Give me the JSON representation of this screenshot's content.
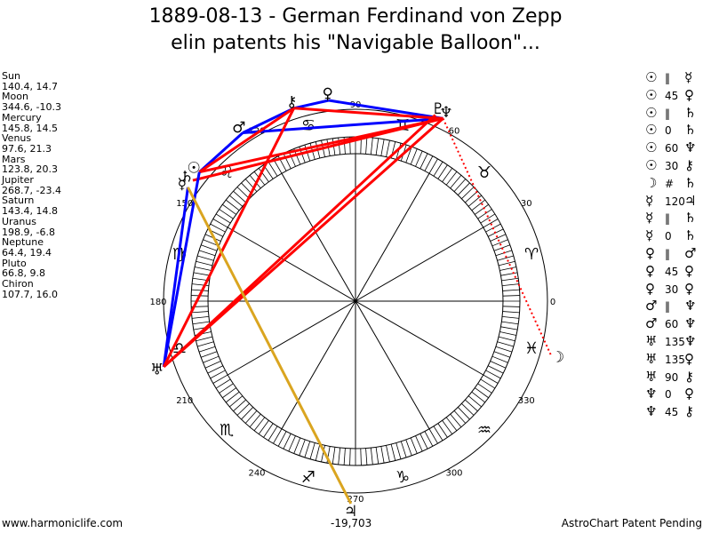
{
  "title": {
    "line1": "1889-08-13 - German Ferdinand von Zepp",
    "line2": "elin patents his \"Navigable Balloon\"..."
  },
  "planets": [
    {
      "name": "Sun",
      "glyph": "☉",
      "values": "140.4, 14.7",
      "lon": 140.4
    },
    {
      "name": "Moon",
      "glyph": "☽",
      "values": "344.6, -10.3",
      "lon": 344.6
    },
    {
      "name": "Mercury",
      "glyph": "☿",
      "values": "145.8, 14.5",
      "lon": 145.8
    },
    {
      "name": "Venus",
      "glyph": "♀",
      "values": "97.6, 21.3",
      "lon": 97.6
    },
    {
      "name": "Mars",
      "glyph": "♂",
      "values": "123.8, 20.3",
      "lon": 123.8
    },
    {
      "name": "Jupiter",
      "glyph": "♃",
      "values": "268.7, -23.4",
      "lon": 268.7
    },
    {
      "name": "Saturn",
      "glyph": "♄",
      "values": "143.4, 14.8",
      "lon": 143.4
    },
    {
      "name": "Uranus",
      "glyph": "♅",
      "values": "198.9, -6.8",
      "lon": 198.9
    },
    {
      "name": "Neptune",
      "glyph": "♆",
      "values": "64.4, 19.4",
      "lon": 64.4
    },
    {
      "name": "Pluto",
      "glyph": "♇",
      "values": "66.8, 9.8",
      "lon": 66.8
    },
    {
      "name": "Chiron",
      "glyph": "⚷",
      "values": "107.7, 16.0",
      "lon": 107.7
    }
  ],
  "aspects": [
    {
      "p1": "Sun",
      "g1": "☉",
      "sym": "‖",
      "g2": "☿",
      "color": "#0000ff"
    },
    {
      "p1": "Sun",
      "g1": "☉",
      "sym": "45",
      "g2": "♀",
      "color": "#ff0000"
    },
    {
      "p1": "Sun",
      "g1": "☉",
      "sym": "‖",
      "g2": "♄",
      "color": "#0000ff"
    },
    {
      "p1": "Sun",
      "g1": "☉",
      "sym": "0",
      "g2": "♄",
      "color": "#0000ff"
    },
    {
      "p1": "Sun",
      "g1": "☉",
      "sym": "60",
      "g2": "♆",
      "color": "#0000ff"
    },
    {
      "p1": "Sun",
      "g1": "☉",
      "sym": "30",
      "g2": "⚷",
      "color": "#0000ff"
    },
    {
      "p1": "Moon",
      "g1": "☽",
      "sym": "#",
      "g2": "♄",
      "color": "#ff0000"
    },
    {
      "p1": "Mercury",
      "g1": "☿",
      "sym": "120",
      "g2": "♃",
      "color": "#0000ff"
    },
    {
      "p1": "Mercury",
      "g1": "☿",
      "sym": "‖",
      "g2": "♄",
      "color": "#0000ff"
    },
    {
      "p1": "Mercury",
      "g1": "☿",
      "sym": "0",
      "g2": "♄",
      "color": "#0000ff"
    },
    {
      "p1": "Venus",
      "g1": "♀",
      "sym": "‖",
      "g2": "♂",
      "color": "#0000ff"
    },
    {
      "p1": "Venus",
      "g1": "♀",
      "sym": "45",
      "g2": "♀",
      "color": "#ff0000"
    },
    {
      "p1": "Venus",
      "g1": "♀",
      "sym": "30",
      "g2": "♀",
      "color": "#0000ff"
    },
    {
      "p1": "Mars",
      "g1": "♂",
      "sym": "‖",
      "g2": "♆",
      "color": "#0000ff"
    },
    {
      "p1": "Mars",
      "g1": "♂",
      "sym": "60",
      "g2": "♆",
      "color": "#0000ff"
    },
    {
      "p1": "Uranus",
      "g1": "♅",
      "sym": "135",
      "g2": "♆",
      "color": "#ff0000"
    },
    {
      "p1": "Uranus",
      "g1": "♅",
      "sym": "135",
      "g2": "♀",
      "color": "#ff0000"
    },
    {
      "p1": "Uranus",
      "g1": "♅",
      "sym": "90",
      "g2": "⚷",
      "color": "#ff0000"
    },
    {
      "p1": "Neptune",
      "g1": "♆",
      "sym": "0",
      "g2": "♀",
      "color": "#0000ff"
    },
    {
      "p1": "Neptune",
      "g1": "♆",
      "sym": "45",
      "g2": "⚷",
      "color": "#ff0000"
    }
  ],
  "chart_lines": [
    {
      "from": "Venus",
      "to": "Neptune",
      "color": "#0000ff"
    },
    {
      "from": "Venus",
      "to": "Chiron",
      "color": "#0000ff"
    },
    {
      "from": "Mars",
      "to": "Neptune",
      "color": "#0000ff"
    },
    {
      "from": "Mars",
      "to": "Chiron",
      "color": "#0000ff"
    },
    {
      "from": "Mars",
      "to": "Sun",
      "color": "#0000ff"
    },
    {
      "from": "Chiron",
      "to": "Neptune",
      "color": "#ff0000"
    },
    {
      "from": "Chiron",
      "to": "Sun",
      "color": "#ff0000"
    },
    {
      "from": "Sun",
      "to": "Neptune",
      "color": "#ff0000"
    },
    {
      "from": "Saturn",
      "to": "Neptune",
      "color": "#ff0000"
    },
    {
      "from": "Sun",
      "to": "Uranus",
      "color": "#0000ff"
    },
    {
      "from": "Mercury",
      "to": "Uranus",
      "color": "#0000ff"
    },
    {
      "from": "Uranus",
      "to": "Neptune",
      "color": "#ff0000"
    },
    {
      "from": "Uranus",
      "to": "Pluto",
      "color": "#ff0000"
    },
    {
      "from": "Uranus",
      "to": "Chiron",
      "color": "#ff0000"
    },
    {
      "from": "Neptune",
      "to": "Moon",
      "color": "#ff0000",
      "dotted": true
    },
    {
      "from": "Mercury",
      "to": "Jupiter",
      "color": "#daa520"
    }
  ],
  "degree_labels": [
    "0",
    "30",
    "60",
    "90",
    "120",
    "150",
    "180",
    "210",
    "240",
    "270",
    "300",
    "330"
  ],
  "zodiac_glyphs": [
    "♈",
    "♉",
    "♊",
    "♋",
    "♌",
    "♍",
    "♎",
    "♏",
    "♐",
    "♑",
    "♒",
    "♓"
  ],
  "footer": {
    "left": "www.harmoniclife.com",
    "center": "-19,703",
    "right": "AstroChart Patent Pending"
  }
}
